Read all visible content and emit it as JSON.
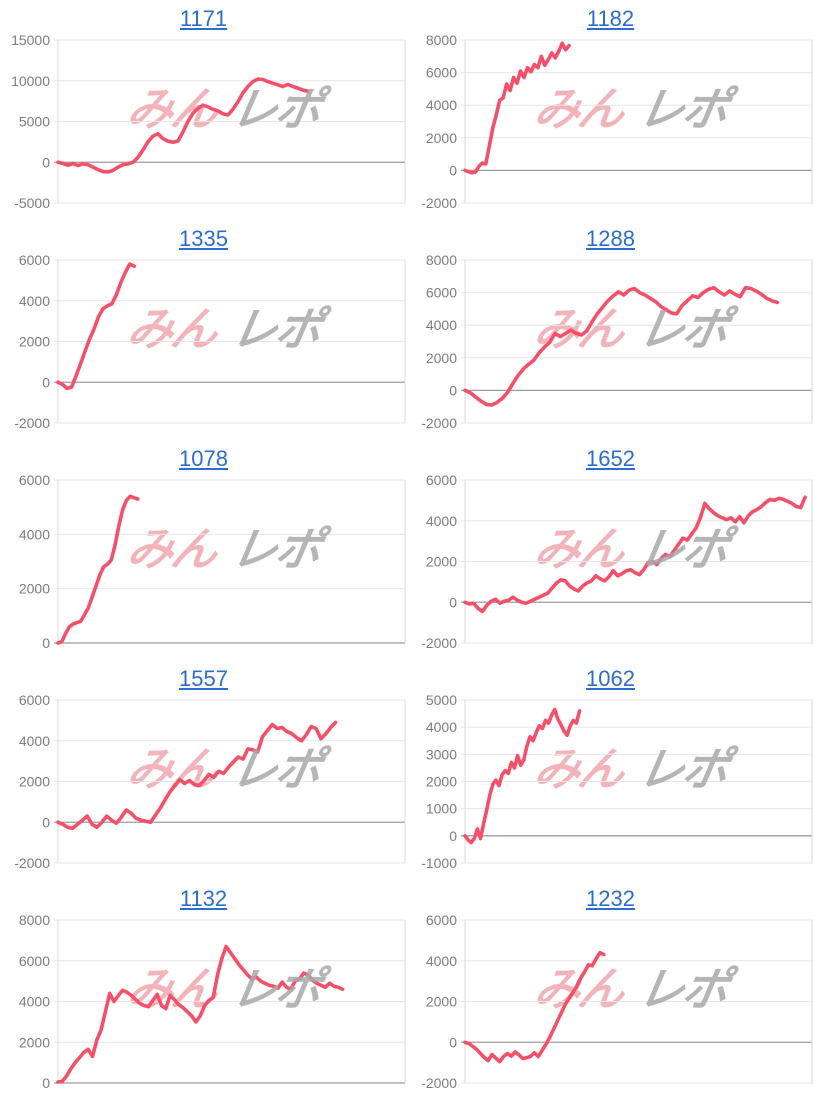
{
  "styles": {
    "line_color": "#f4506a",
    "grid_color": "#e6e6e6",
    "zero_line_color": "#9e9e9e",
    "axis_color": "#d9d9d9",
    "label_color": "#7d7d7d",
    "title_color": "#2b6ed0",
    "background": "#ffffff"
  },
  "watermark": {
    "pink_text": "みん",
    "gray_text": "レポ",
    "pink_color": "#f2b3b9",
    "gray_color": "#a9a9a9"
  },
  "chart_data": [
    {
      "type": "line",
      "title": "1171",
      "xlabel": "",
      "ylabel": "",
      "grid": true,
      "y_ticks": [
        15000,
        10000,
        5000,
        0,
        -5000
      ],
      "ylim": [
        -5000,
        15000
      ],
      "x_end": 0.72,
      "values": [
        0,
        -150,
        -350,
        -150,
        -400,
        -200,
        -300,
        -600,
        -900,
        -1150,
        -1200,
        -1000,
        -600,
        -300,
        -200,
        0,
        600,
        1500,
        2500,
        3200,
        3500,
        2900,
        2600,
        2450,
        2600,
        3700,
        5000,
        6000,
        6600,
        7000,
        6800,
        6500,
        6300,
        5950,
        5800,
        6500,
        7400,
        8500,
        9300,
        9900,
        10200,
        10150,
        9900,
        9700,
        9500,
        9300,
        9550,
        9300,
        9100,
        8850,
        8700
      ]
    },
    {
      "type": "line",
      "title": "1182",
      "xlabel": "",
      "ylabel": "",
      "grid": true,
      "y_ticks": [
        8000,
        6000,
        4000,
        2000,
        0,
        -2000
      ],
      "ylim": [
        -2000,
        8000
      ],
      "x_end": 0.3,
      "values": [
        0,
        -80,
        -150,
        -100,
        250,
        450,
        400,
        1500,
        2600,
        3400,
        4300,
        4450,
        5300,
        4900,
        5700,
        5350,
        6100,
        5700,
        6300,
        6050,
        6500,
        6300,
        7000,
        6450,
        6800,
        7200,
        6900,
        7300,
        7800,
        7400,
        7650
      ]
    },
    {
      "type": "line",
      "title": "1335",
      "xlabel": "",
      "ylabel": "",
      "grid": true,
      "y_ticks": [
        6000,
        4000,
        2000,
        0,
        -2000
      ],
      "ylim": [
        -2000,
        6000
      ],
      "x_end": 0.22,
      "values": [
        0,
        -100,
        -300,
        -250,
        300,
        900,
        1500,
        2100,
        2600,
        3200,
        3600,
        3750,
        3850,
        4300,
        4900,
        5400,
        5800,
        5700
      ]
    },
    {
      "type": "line",
      "title": "1288",
      "xlabel": "",
      "ylabel": "",
      "grid": true,
      "y_ticks": [
        8000,
        6000,
        4000,
        2000,
        0,
        -2000
      ],
      "ylim": [
        -2000,
        8000
      ],
      "x_end": 0.9,
      "values": [
        0,
        -150,
        -400,
        -650,
        -850,
        -900,
        -750,
        -500,
        -150,
        400,
        900,
        1300,
        1600,
        1850,
        2300,
        2650,
        2950,
        3500,
        3300,
        3500,
        3700,
        3500,
        3400,
        3650,
        4200,
        4700,
        5100,
        5500,
        5800,
        6050,
        5850,
        6150,
        6250,
        6000,
        5850,
        5650,
        5450,
        5150,
        4950,
        4750,
        4700,
        5200,
        5500,
        5800,
        5700,
        6000,
        6200,
        6300,
        6050,
        5850,
        6100,
        5900,
        5750,
        6300,
        6250,
        6100,
        5900,
        5650,
        5500,
        5400
      ]
    },
    {
      "type": "line",
      "title": "1078",
      "xlabel": "",
      "ylabel": "",
      "grid": true,
      "y_ticks": [
        6000,
        4000,
        2000,
        0
      ],
      "ylim": [
        0,
        6000
      ],
      "x_end": 0.23,
      "values": [
        0,
        50,
        350,
        600,
        700,
        750,
        800,
        1050,
        1300,
        1700,
        2100,
        2500,
        2800,
        2900,
        3050,
        3600,
        4300,
        4900,
        5250,
        5400,
        5350,
        5300
      ]
    },
    {
      "type": "line",
      "title": "1652",
      "xlabel": "",
      "ylabel": "",
      "grid": true,
      "y_ticks": [
        6000,
        4000,
        2000,
        0,
        -2000
      ],
      "ylim": [
        -2000,
        6000
      ],
      "x_end": 0.98,
      "values": [
        0,
        -80,
        -50,
        -300,
        -450,
        -150,
        50,
        150,
        -50,
        50,
        100,
        250,
        100,
        0,
        -50,
        50,
        150,
        250,
        350,
        450,
        700,
        950,
        1100,
        1050,
        800,
        650,
        550,
        800,
        950,
        1050,
        1300,
        1150,
        1050,
        1250,
        1550,
        1300,
        1400,
        1550,
        1600,
        1450,
        1350,
        1600,
        1950,
        2000,
        1850,
        2150,
        2350,
        2250,
        2550,
        2850,
        3150,
        3050,
        3350,
        3650,
        4150,
        4850,
        4600,
        4400,
        4250,
        4150,
        4050,
        4150,
        3950,
        4200,
        3900,
        4250,
        4450,
        4550,
        4700,
        4900,
        5050,
        5000,
        5100,
        5050,
        4950,
        4850,
        4700,
        4650,
        5150
      ]
    },
    {
      "type": "line",
      "title": "1557",
      "xlabel": "",
      "ylabel": "",
      "grid": true,
      "y_ticks": [
        6000,
        4000,
        2000,
        0,
        -2000
      ],
      "ylim": [
        -2000,
        6000
      ],
      "x_end": 0.8,
      "values": [
        0,
        -100,
        -250,
        -300,
        -100,
        100,
        300,
        -100,
        -250,
        0,
        300,
        100,
        -50,
        250,
        600,
        450,
        200,
        100,
        50,
        0,
        350,
        700,
        1100,
        1500,
        1800,
        2100,
        1900,
        2050,
        1850,
        1800,
        2050,
        2350,
        2200,
        2500,
        2400,
        2700,
        2950,
        3200,
        3100,
        3600,
        3550,
        3450,
        4200,
        4500,
        4800,
        4600,
        4650,
        4450,
        4350,
        4150,
        4000,
        4300,
        4700,
        4600,
        4100,
        4350,
        4650,
        4900
      ]
    },
    {
      "type": "line",
      "title": "1062",
      "xlabel": "",
      "ylabel": "",
      "grid": true,
      "y_ticks": [
        5000,
        4000,
        3000,
        2000,
        1000,
        0,
        -1000
      ],
      "ylim": [
        -1000,
        5000
      ],
      "x_end": 0.33,
      "values": [
        0,
        -150,
        -250,
        -100,
        250,
        -100,
        450,
        950,
        1500,
        1900,
        2050,
        1850,
        2250,
        2400,
        2300,
        2700,
        2500,
        2950,
        2600,
        2800,
        3300,
        3650,
        3500,
        3800,
        4050,
        3950,
        4250,
        4150,
        4450,
        4650,
        4300,
        4100,
        3850,
        3700,
        4050,
        4250,
        4150,
        4600
      ]
    },
    {
      "type": "line",
      "title": "1132",
      "xlabel": "",
      "ylabel": "",
      "grid": true,
      "y_ticks": [
        8000,
        6000,
        4000,
        2000,
        0
      ],
      "ylim": [
        0,
        8000
      ],
      "x_end": 0.82,
      "values": [
        50,
        80,
        350,
        700,
        1000,
        1250,
        1500,
        1650,
        1300,
        2100,
        2600,
        3500,
        4400,
        4000,
        4300,
        4550,
        4450,
        4300,
        4100,
        3900,
        3800,
        3750,
        4050,
        4350,
        3800,
        3650,
        4300,
        4100,
        3850,
        3700,
        3500,
        3300,
        3000,
        3300,
        3800,
        4050,
        4200,
        5300,
        6100,
        6700,
        6400,
        6100,
        5800,
        5550,
        5300,
        5100,
        5200,
        5000,
        4900,
        4800,
        4750,
        4650,
        4950,
        4700,
        4600,
        5000,
        5100,
        5400,
        5300,
        5050,
        4900,
        4800,
        4700,
        4900,
        4750,
        4700,
        4600
      ]
    },
    {
      "type": "line",
      "title": "1232",
      "xlabel": "",
      "ylabel": "",
      "grid": true,
      "y_ticks": [
        6000,
        4000,
        2000,
        0,
        -2000
      ],
      "ylim": [
        -2000,
        6000
      ],
      "x_end": 0.4,
      "values": [
        0,
        -60,
        -200,
        -350,
        -550,
        -750,
        -900,
        -600,
        -780,
        -950,
        -700,
        -550,
        -680,
        -480,
        -620,
        -800,
        -760,
        -700,
        -520,
        -700,
        -400,
        -100,
        250,
        650,
        1050,
        1450,
        1850,
        2150,
        2450,
        2750,
        3150,
        3450,
        3800,
        3750,
        4100,
        4400,
        4300
      ]
    }
  ]
}
